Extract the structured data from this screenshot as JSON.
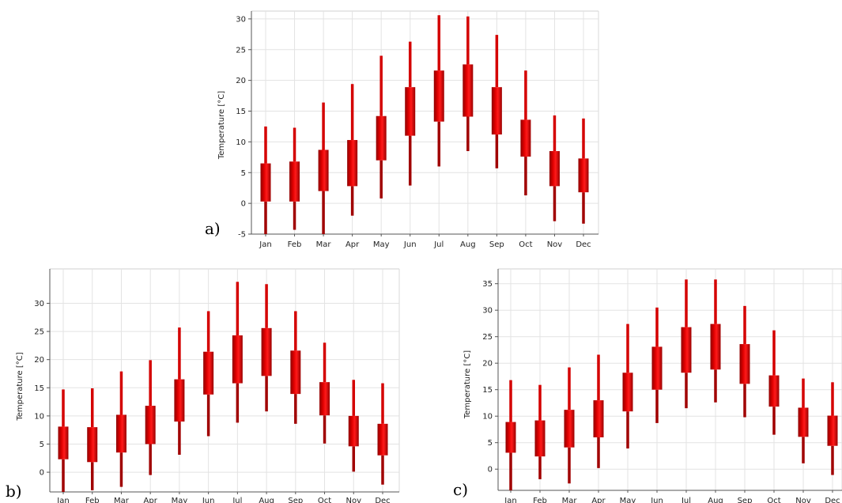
{
  "chart_data": [
    {
      "type": "box",
      "panel_label": "a)",
      "ylabel": "Temperature [°C]",
      "ylim": [
        -5,
        30.5
      ],
      "yticks": [
        -5,
        0,
        5,
        10,
        15,
        20,
        25,
        30
      ],
      "grid": true,
      "categories": [
        "Jan",
        "Feb",
        "Mar",
        "Apr",
        "May",
        "Jun",
        "Jul",
        "Aug",
        "Sep",
        "Oct",
        "Nov",
        "Dec"
      ],
      "series": [
        {
          "values": [
            {
              "min": -5,
              "q1": 0.3,
              "q3": 6.5,
              "max": 12.5
            },
            {
              "min": -4.3,
              "q1": 0.3,
              "q3": 6.8,
              "max": 12.3
            },
            {
              "min": -5,
              "q1": 2.0,
              "q3": 8.7,
              "max": 16.4
            },
            {
              "min": -2.0,
              "q1": 2.8,
              "q3": 10.3,
              "max": 19.4
            },
            {
              "min": 0.8,
              "q1": 7.0,
              "q3": 14.2,
              "max": 24.0
            },
            {
              "min": 2.9,
              "q1": 11.0,
              "q3": 18.9,
              "max": 26.3
            },
            {
              "min": 6.0,
              "q1": 13.3,
              "q3": 21.6,
              "max": 30.6
            },
            {
              "min": 8.5,
              "q1": 14.1,
              "q3": 22.6,
              "max": 30.4
            },
            {
              "min": 5.7,
              "q1": 11.2,
              "q3": 18.9,
              "max": 27.4
            },
            {
              "min": 1.3,
              "q1": 7.6,
              "q3": 13.6,
              "max": 21.6
            },
            {
              "min": -2.9,
              "q1": 2.8,
              "q3": 8.5,
              "max": 14.3
            },
            {
              "min": -3.3,
              "q1": 1.8,
              "q3": 7.3,
              "max": 13.8
            }
          ]
        }
      ]
    },
    {
      "type": "box",
      "panel_label": "b)",
      "ylabel": "Temperature [°C]",
      "ylim": [
        -3.5,
        34
      ],
      "yticks": [
        0,
        5,
        10,
        15,
        20,
        25,
        30
      ],
      "grid": true,
      "categories": [
        "Jan",
        "Feb",
        "Mar",
        "Apr",
        "May",
        "Jun",
        "Jul",
        "Aug",
        "Sep",
        "Oct",
        "Nov",
        "Dec"
      ],
      "series": [
        {
          "values": [
            {
              "min": -3.5,
              "q1": 2.3,
              "q3": 8.1,
              "max": 14.7
            },
            {
              "min": -3.2,
              "q1": 1.8,
              "q3": 8.0,
              "max": 14.9
            },
            {
              "min": -2.6,
              "q1": 3.5,
              "q3": 10.2,
              "max": 17.9
            },
            {
              "min": -0.5,
              "q1": 5.0,
              "q3": 11.8,
              "max": 19.9
            },
            {
              "min": 3.1,
              "q1": 9.0,
              "q3": 16.5,
              "max": 25.7
            },
            {
              "min": 6.4,
              "q1": 13.8,
              "q3": 21.4,
              "max": 28.6
            },
            {
              "min": 8.8,
              "q1": 15.8,
              "q3": 24.3,
              "max": 33.8
            },
            {
              "min": 10.8,
              "q1": 17.1,
              "q3": 25.6,
              "max": 33.4
            },
            {
              "min": 8.6,
              "q1": 13.9,
              "q3": 21.6,
              "max": 28.6
            },
            {
              "min": 5.1,
              "q1": 10.1,
              "q3": 16.0,
              "max": 23.0
            },
            {
              "min": 0.1,
              "q1": 4.6,
              "q3": 10.0,
              "max": 16.4
            },
            {
              "min": -2.2,
              "q1": 3.0,
              "q3": 8.6,
              "max": 15.8
            }
          ]
        }
      ]
    },
    {
      "type": "box",
      "panel_label": "c)",
      "ylabel": "Temperature [°C]",
      "ylim": [
        -4,
        36
      ],
      "yticks": [
        0,
        5,
        10,
        15,
        20,
        25,
        30,
        35
      ],
      "grid": true,
      "categories": [
        "Jan",
        "Feb",
        "Mar",
        "Apr",
        "May",
        "Jun",
        "Jul",
        "Aug",
        "Sep",
        "Oct",
        "Nov",
        "Dec"
      ],
      "series": [
        {
          "values": [
            {
              "min": -4,
              "q1": 3.1,
              "q3": 8.9,
              "max": 16.8
            },
            {
              "min": -1.9,
              "q1": 2.4,
              "q3": 9.2,
              "max": 15.9
            },
            {
              "min": -2.7,
              "q1": 4.1,
              "q3": 11.2,
              "max": 19.2
            },
            {
              "min": 0.2,
              "q1": 6.0,
              "q3": 13.0,
              "max": 21.6
            },
            {
              "min": 3.9,
              "q1": 10.9,
              "q3": 18.2,
              "max": 27.4
            },
            {
              "min": 8.7,
              "q1": 15.0,
              "q3": 23.1,
              "max": 30.5
            },
            {
              "min": 11.5,
              "q1": 18.2,
              "q3": 26.8,
              "max": 35.8
            },
            {
              "min": 12.6,
              "q1": 18.8,
              "q3": 27.4,
              "max": 35.8
            },
            {
              "min": 9.8,
              "q1": 16.1,
              "q3": 23.6,
              "max": 30.8
            },
            {
              "min": 6.5,
              "q1": 11.8,
              "q3": 17.7,
              "max": 26.2
            },
            {
              "min": 1.1,
              "q1": 6.1,
              "q3": 11.6,
              "max": 17.1
            },
            {
              "min": -1.1,
              "q1": 4.4,
              "q3": 10.1,
              "max": 16.4
            }
          ]
        }
      ]
    }
  ]
}
